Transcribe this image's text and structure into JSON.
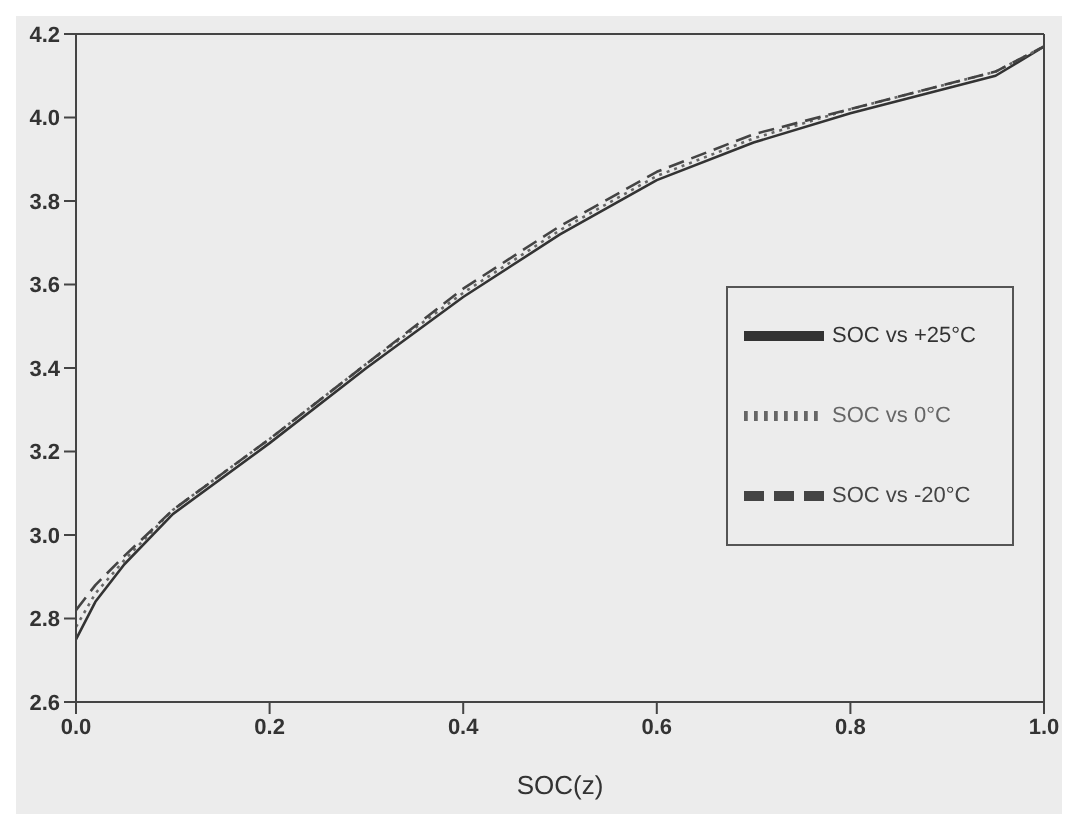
{
  "chart_data": {
    "type": "line",
    "xlabel": "SOC(z)",
    "x": [
      0,
      0.02,
      0.05,
      0.1,
      0.2,
      0.3,
      0.4,
      0.5,
      0.6,
      0.7,
      0.8,
      0.9,
      0.95,
      1.0
    ],
    "series": [
      {
        "name": "SOC vs +25°C",
        "color": "#333333",
        "line_style": "solid",
        "values": [
          2.75,
          2.84,
          2.93,
          3.05,
          3.22,
          3.4,
          3.57,
          3.72,
          3.85,
          3.94,
          4.01,
          4.07,
          4.1,
          4.17
        ]
      },
      {
        "name": "SOC vs 0°C",
        "color": "#666666",
        "line_style": "dotted",
        "values": [
          2.78,
          2.86,
          2.94,
          3.06,
          3.23,
          3.41,
          3.58,
          3.73,
          3.86,
          3.95,
          4.02,
          4.08,
          4.11,
          4.17
        ]
      },
      {
        "name": "SOC vs -20°C",
        "color": "#444444",
        "line_style": "dashed",
        "values": [
          2.82,
          2.88,
          2.95,
          3.06,
          3.23,
          3.41,
          3.59,
          3.74,
          3.87,
          3.96,
          4.02,
          4.08,
          4.11,
          4.17
        ]
      }
    ],
    "xlim": [
      0,
      1
    ],
    "xticks": [
      {
        "value": 0,
        "label": "0.0"
      },
      0.2,
      0.4,
      0.6,
      0.8,
      {
        "value": 1,
        "label": "1.0"
      }
    ],
    "ylim": [
      2.6,
      4.2
    ],
    "yticks": [
      2.6,
      2.8,
      {
        "value": 3,
        "label": "3.0"
      },
      3.2,
      3.4,
      3.6,
      3.8,
      {
        "value": 4,
        "label": "4.0"
      },
      4.2
    ],
    "grid": false,
    "legend": "right",
    "marker": "none"
  }
}
